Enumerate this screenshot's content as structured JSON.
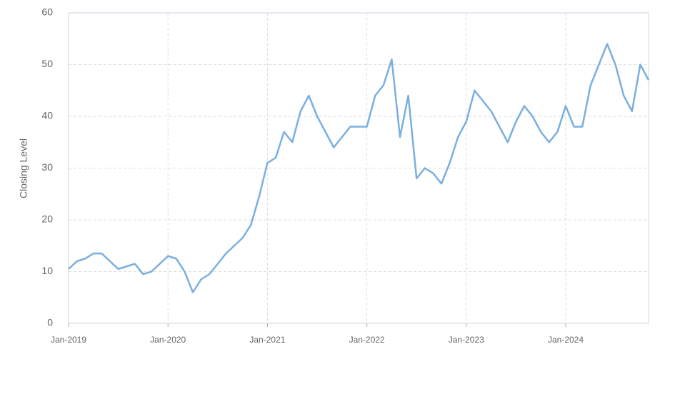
{
  "chart_data": {
    "type": "line",
    "y_label": "Closing Level",
    "x": [
      "2019-01",
      "2019-02",
      "2019-03",
      "2019-04",
      "2019-05",
      "2019-06",
      "2019-07",
      "2019-08",
      "2019-09",
      "2019-10",
      "2019-11",
      "2019-12",
      "2020-01",
      "2020-02",
      "2020-03",
      "2020-04",
      "2020-05",
      "2020-06",
      "2020-07",
      "2020-08",
      "2020-09",
      "2020-10",
      "2020-11",
      "2020-12",
      "2021-01",
      "2021-02",
      "2021-03",
      "2021-04",
      "2021-05",
      "2021-06",
      "2021-07",
      "2021-08",
      "2021-09",
      "2021-10",
      "2021-11",
      "2021-12",
      "2022-01",
      "2022-02",
      "2022-03",
      "2022-04",
      "2022-05",
      "2022-06",
      "2022-07",
      "2022-08",
      "2022-09",
      "2022-10",
      "2022-11",
      "2022-12",
      "2023-01",
      "2023-02",
      "2023-03",
      "2023-04",
      "2023-05",
      "2023-06",
      "2023-07",
      "2023-08",
      "2023-09",
      "2023-10",
      "2023-11",
      "2023-12",
      "2024-01",
      "2024-02",
      "2024-03",
      "2024-04",
      "2024-05",
      "2024-06",
      "2024-07",
      "2024-08",
      "2024-09",
      "2024-10",
      "2024-11"
    ],
    "series": [
      {
        "name": "Closing Level",
        "color": "#7aafe0",
        "values": [
          10.5,
          12,
          12.5,
          13.5,
          13.5,
          12,
          10.5,
          11,
          11.5,
          9.5,
          10,
          11.5,
          13,
          12.5,
          10,
          6,
          8.5,
          9.5,
          11.5,
          13.5,
          15,
          16.5,
          19,
          24.5,
          31,
          32,
          37,
          35,
          41,
          44,
          40,
          37,
          34,
          36,
          38,
          38,
          38,
          44,
          46,
          51,
          36,
          44,
          28,
          30,
          29,
          27,
          31,
          36,
          39,
          45,
          43,
          41,
          38,
          35,
          39,
          42,
          40,
          37,
          35,
          37,
          42,
          38,
          38,
          46,
          50,
          54,
          50,
          44,
          41,
          50,
          47
        ]
      }
    ],
    "xlim": [
      "2019-01",
      "2024-11"
    ],
    "xticks": [
      {
        "value": "2019-01",
        "label": "Jan-2019"
      },
      {
        "value": "2020-01",
        "label": "Jan-2020"
      },
      {
        "value": "2021-01",
        "label": "Jan-2021"
      },
      {
        "value": "2022-01",
        "label": "Jan-2022"
      },
      {
        "value": "2023-01",
        "label": "Jan-2023"
      },
      {
        "value": "2024-01",
        "label": "Jan-2024"
      }
    ],
    "ylim": [
      0,
      60
    ],
    "yticks": [
      0,
      10,
      20,
      30,
      40,
      50,
      60
    ],
    "grid": true
  }
}
